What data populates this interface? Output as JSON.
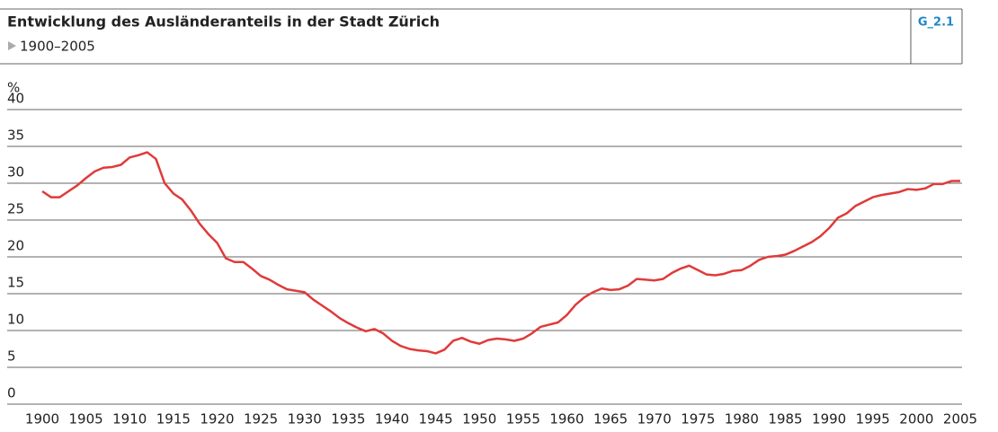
{
  "chart_data": {
    "type": "line",
    "title": "Entwicklung des Ausländeranteils in der Stadt Zürich",
    "subtitle": "1900–2005",
    "badge": "G_2.1",
    "y_label": "%",
    "x": [
      1900,
      1901,
      1902,
      1903,
      1904,
      1905,
      1906,
      1907,
      1908,
      1909,
      1910,
      1911,
      1912,
      1913,
      1914,
      1915,
      1916,
      1917,
      1918,
      1919,
      1920,
      1921,
      1922,
      1923,
      1924,
      1925,
      1926,
      1927,
      1928,
      1929,
      1930,
      1931,
      1932,
      1933,
      1934,
      1935,
      1936,
      1937,
      1938,
      1939,
      1940,
      1941,
      1942,
      1943,
      1944,
      1945,
      1946,
      1947,
      1948,
      1949,
      1950,
      1951,
      1952,
      1953,
      1954,
      1955,
      1956,
      1957,
      1958,
      1959,
      1960,
      1961,
      1962,
      1963,
      1964,
      1965,
      1966,
      1967,
      1968,
      1969,
      1970,
      1971,
      1972,
      1973,
      1974,
      1975,
      1976,
      1977,
      1978,
      1979,
      1980,
      1981,
      1982,
      1983,
      1984,
      1985,
      1986,
      1987,
      1988,
      1989,
      1990,
      1991,
      1992,
      1993,
      1994,
      1995,
      1996,
      1997,
      1998,
      1999,
      2000,
      2001,
      2002,
      2003,
      2004,
      2005
    ],
    "series": [
      {
        "name": "Ausländeranteil",
        "color": "#e03a3a",
        "values": [
          28.9,
          28.1,
          28.1,
          28.9,
          29.7,
          30.7,
          31.6,
          32.1,
          32.2,
          32.5,
          33.5,
          33.8,
          34.2,
          33.3,
          30.0,
          28.6,
          27.8,
          26.3,
          24.5,
          23.1,
          21.9,
          19.8,
          19.3,
          19.3,
          18.4,
          17.4,
          16.9,
          16.2,
          15.6,
          15.4,
          15.2,
          14.2,
          13.4,
          12.6,
          11.7,
          11.0,
          10.4,
          9.9,
          10.2,
          9.6,
          8.6,
          7.9,
          7.5,
          7.3,
          7.2,
          6.9,
          7.4,
          8.6,
          9.0,
          8.5,
          8.2,
          8.7,
          8.9,
          8.8,
          8.6,
          8.9,
          9.6,
          10.5,
          10.8,
          11.1,
          12.1,
          13.5,
          14.5,
          15.2,
          15.7,
          15.5,
          15.6,
          16.1,
          17.0,
          16.9,
          16.8,
          17.0,
          17.8,
          18.4,
          18.8,
          18.2,
          17.6,
          17.5,
          17.7,
          18.1,
          18.2,
          18.8,
          19.6,
          20.0,
          20.1,
          20.3,
          20.8,
          21.4,
          22.0,
          22.8,
          23.9,
          25.3,
          25.9,
          26.9,
          27.5,
          28.1,
          28.4,
          28.6,
          28.8,
          29.2,
          29.1,
          29.3,
          29.9,
          29.9,
          30.3,
          30.3
        ]
      }
    ],
    "xlim": [
      1900,
      2005
    ],
    "xticks": [
      1900,
      1905,
      1910,
      1915,
      1920,
      1925,
      1930,
      1935,
      1940,
      1945,
      1950,
      1955,
      1960,
      1965,
      1970,
      1975,
      1980,
      1985,
      1990,
      1995,
      2000,
      2005
    ],
    "ylim": [
      0,
      40
    ],
    "yticks": [
      0,
      5,
      10,
      15,
      20,
      25,
      30,
      35,
      40
    ],
    "grid": true
  }
}
